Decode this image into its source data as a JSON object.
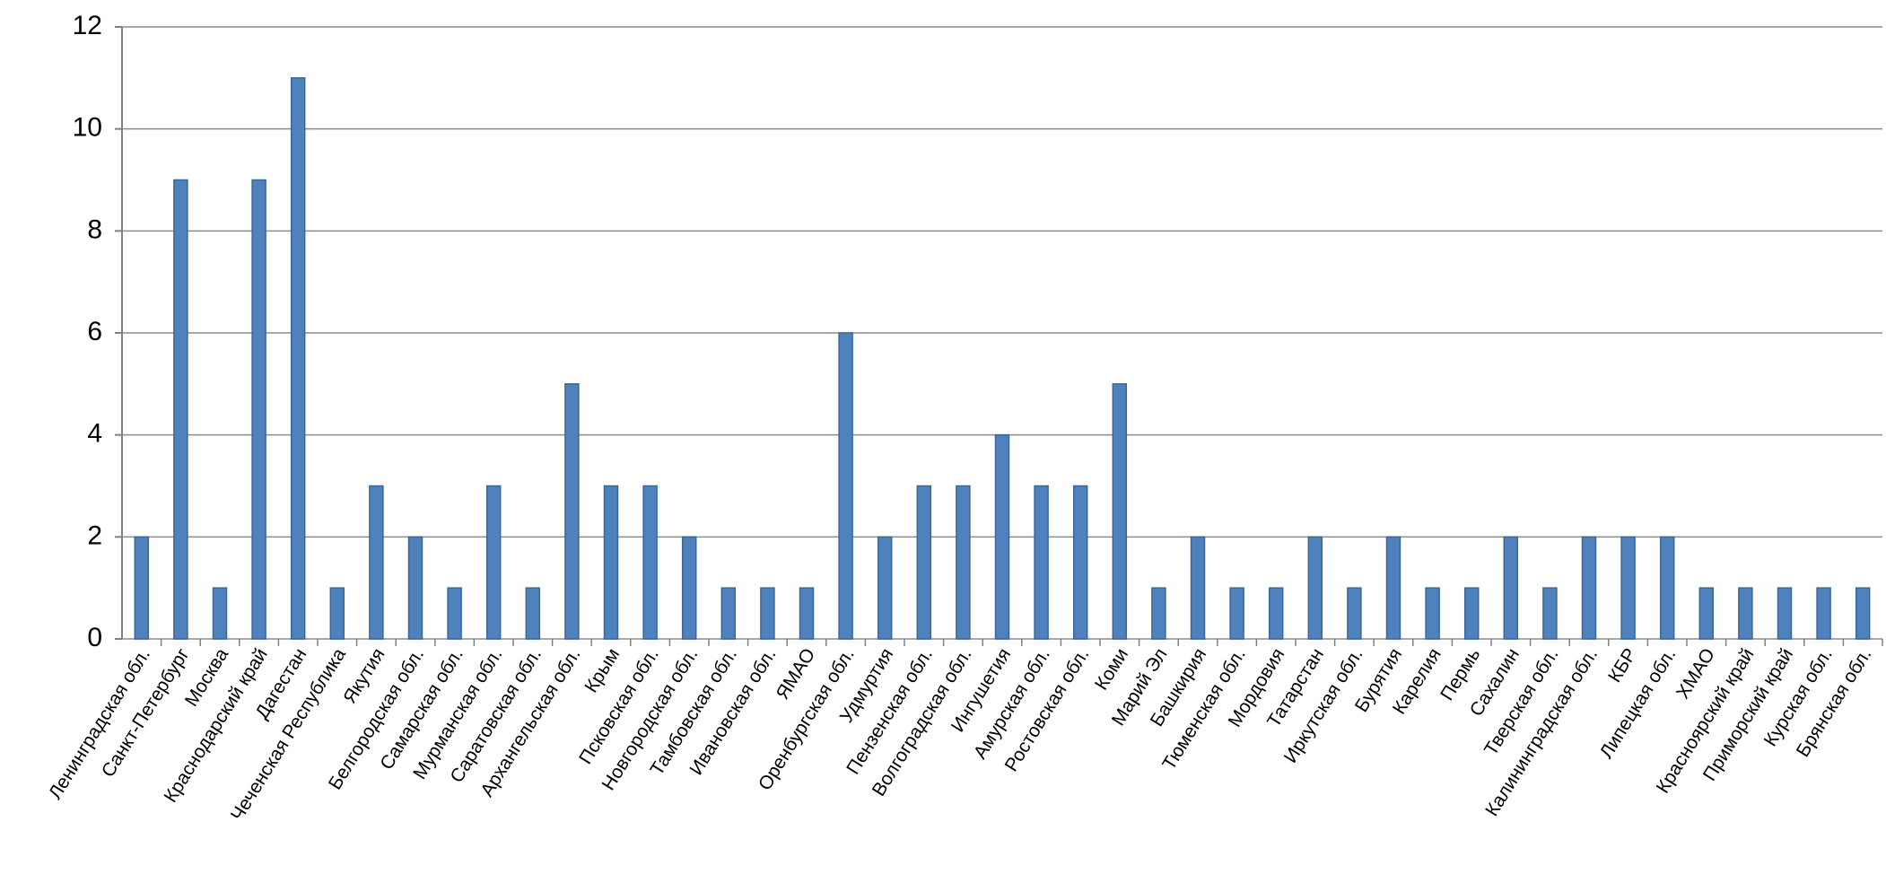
{
  "chart_data": {
    "type": "bar",
    "categories": [
      "Ленинградская обл.",
      "Санкт-Петербург",
      "Москва",
      "Краснодарский край",
      "Дагестан",
      "Чеченская Республика",
      "Якутия",
      "Белгородская обл.",
      "Самарская обл.",
      "Мурманская обл.",
      "Саратовская обл.",
      "Архангельская обл.",
      "Крым",
      "Псковская обл.",
      "Новгородская обл.",
      "Тамбовская обл.",
      "Ивановская обл.",
      "ЯМАО",
      "Оренбургская обл.",
      "Удмуртия",
      "Пензенская обл.",
      "Волгоградская обл.",
      "Ингушетия",
      "Амурская обл.",
      "Ростовская обл.",
      "Коми",
      "Марий Эл",
      "Башкирия",
      "Тюменская обл.",
      "Мордовия",
      "Татарстан",
      "Иркутская обл.",
      "Бурятия",
      "Карелия",
      "Пермь",
      "Сахалин",
      "Тверская обл.",
      "Калининградская обл.",
      "КБР",
      "Липецкая обл.",
      "ХМАО",
      "Красноярский край",
      "Приморский край",
      "Курская обл.",
      "Брянская обл."
    ],
    "values": [
      2,
      9,
      1,
      9,
      11,
      1,
      3,
      2,
      1,
      3,
      1,
      5,
      3,
      3,
      2,
      1,
      1,
      1,
      6,
      2,
      3,
      3,
      4,
      3,
      3,
      5,
      1,
      2,
      1,
      1,
      2,
      1,
      2,
      1,
      1,
      2,
      1,
      2,
      2,
      2,
      1,
      1,
      1,
      1,
      1
    ],
    "color": "#4f81bd",
    "ylim": [
      0,
      12
    ],
    "yticks": [
      0,
      2,
      4,
      6,
      8,
      10,
      12
    ],
    "grid": true
  }
}
